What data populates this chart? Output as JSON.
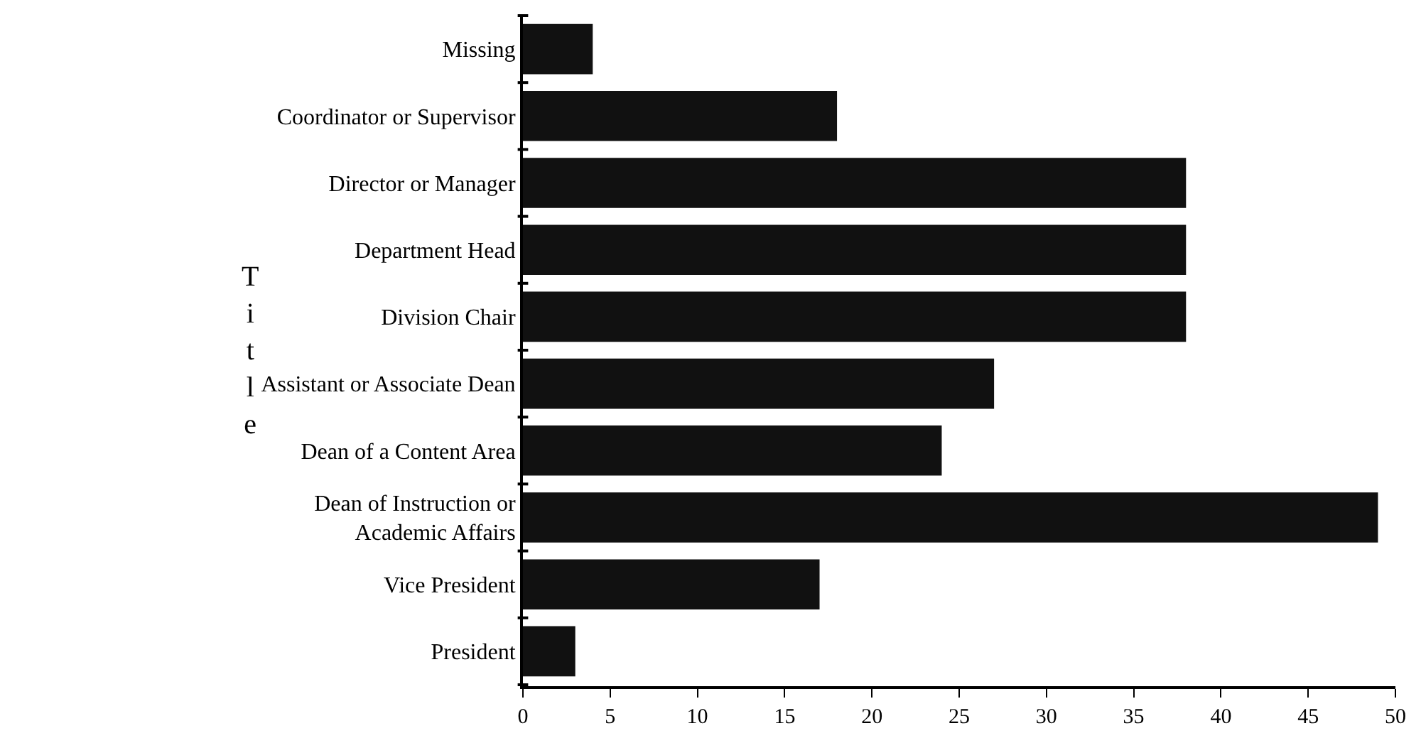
{
  "chart_data": {
    "type": "bar",
    "orientation": "horizontal",
    "ylabel": "Title",
    "categories": [
      "Missing",
      "Coordinator or Supervisor",
      "Director or Manager",
      "Department Head",
      "Division Chair",
      "Assistant or Associate Dean",
      "Dean of a Content Area",
      "Dean of Instruction or\nAcademic Affairs",
      "Vice President",
      "President"
    ],
    "values": [
      4,
      18,
      38,
      38,
      38,
      27,
      24,
      49,
      17,
      3
    ],
    "color": "#111111",
    "xlim": [
      0,
      50
    ],
    "xticks": [
      0,
      5,
      10,
      15,
      20,
      25,
      30,
      35,
      40,
      45,
      50
    ]
  }
}
